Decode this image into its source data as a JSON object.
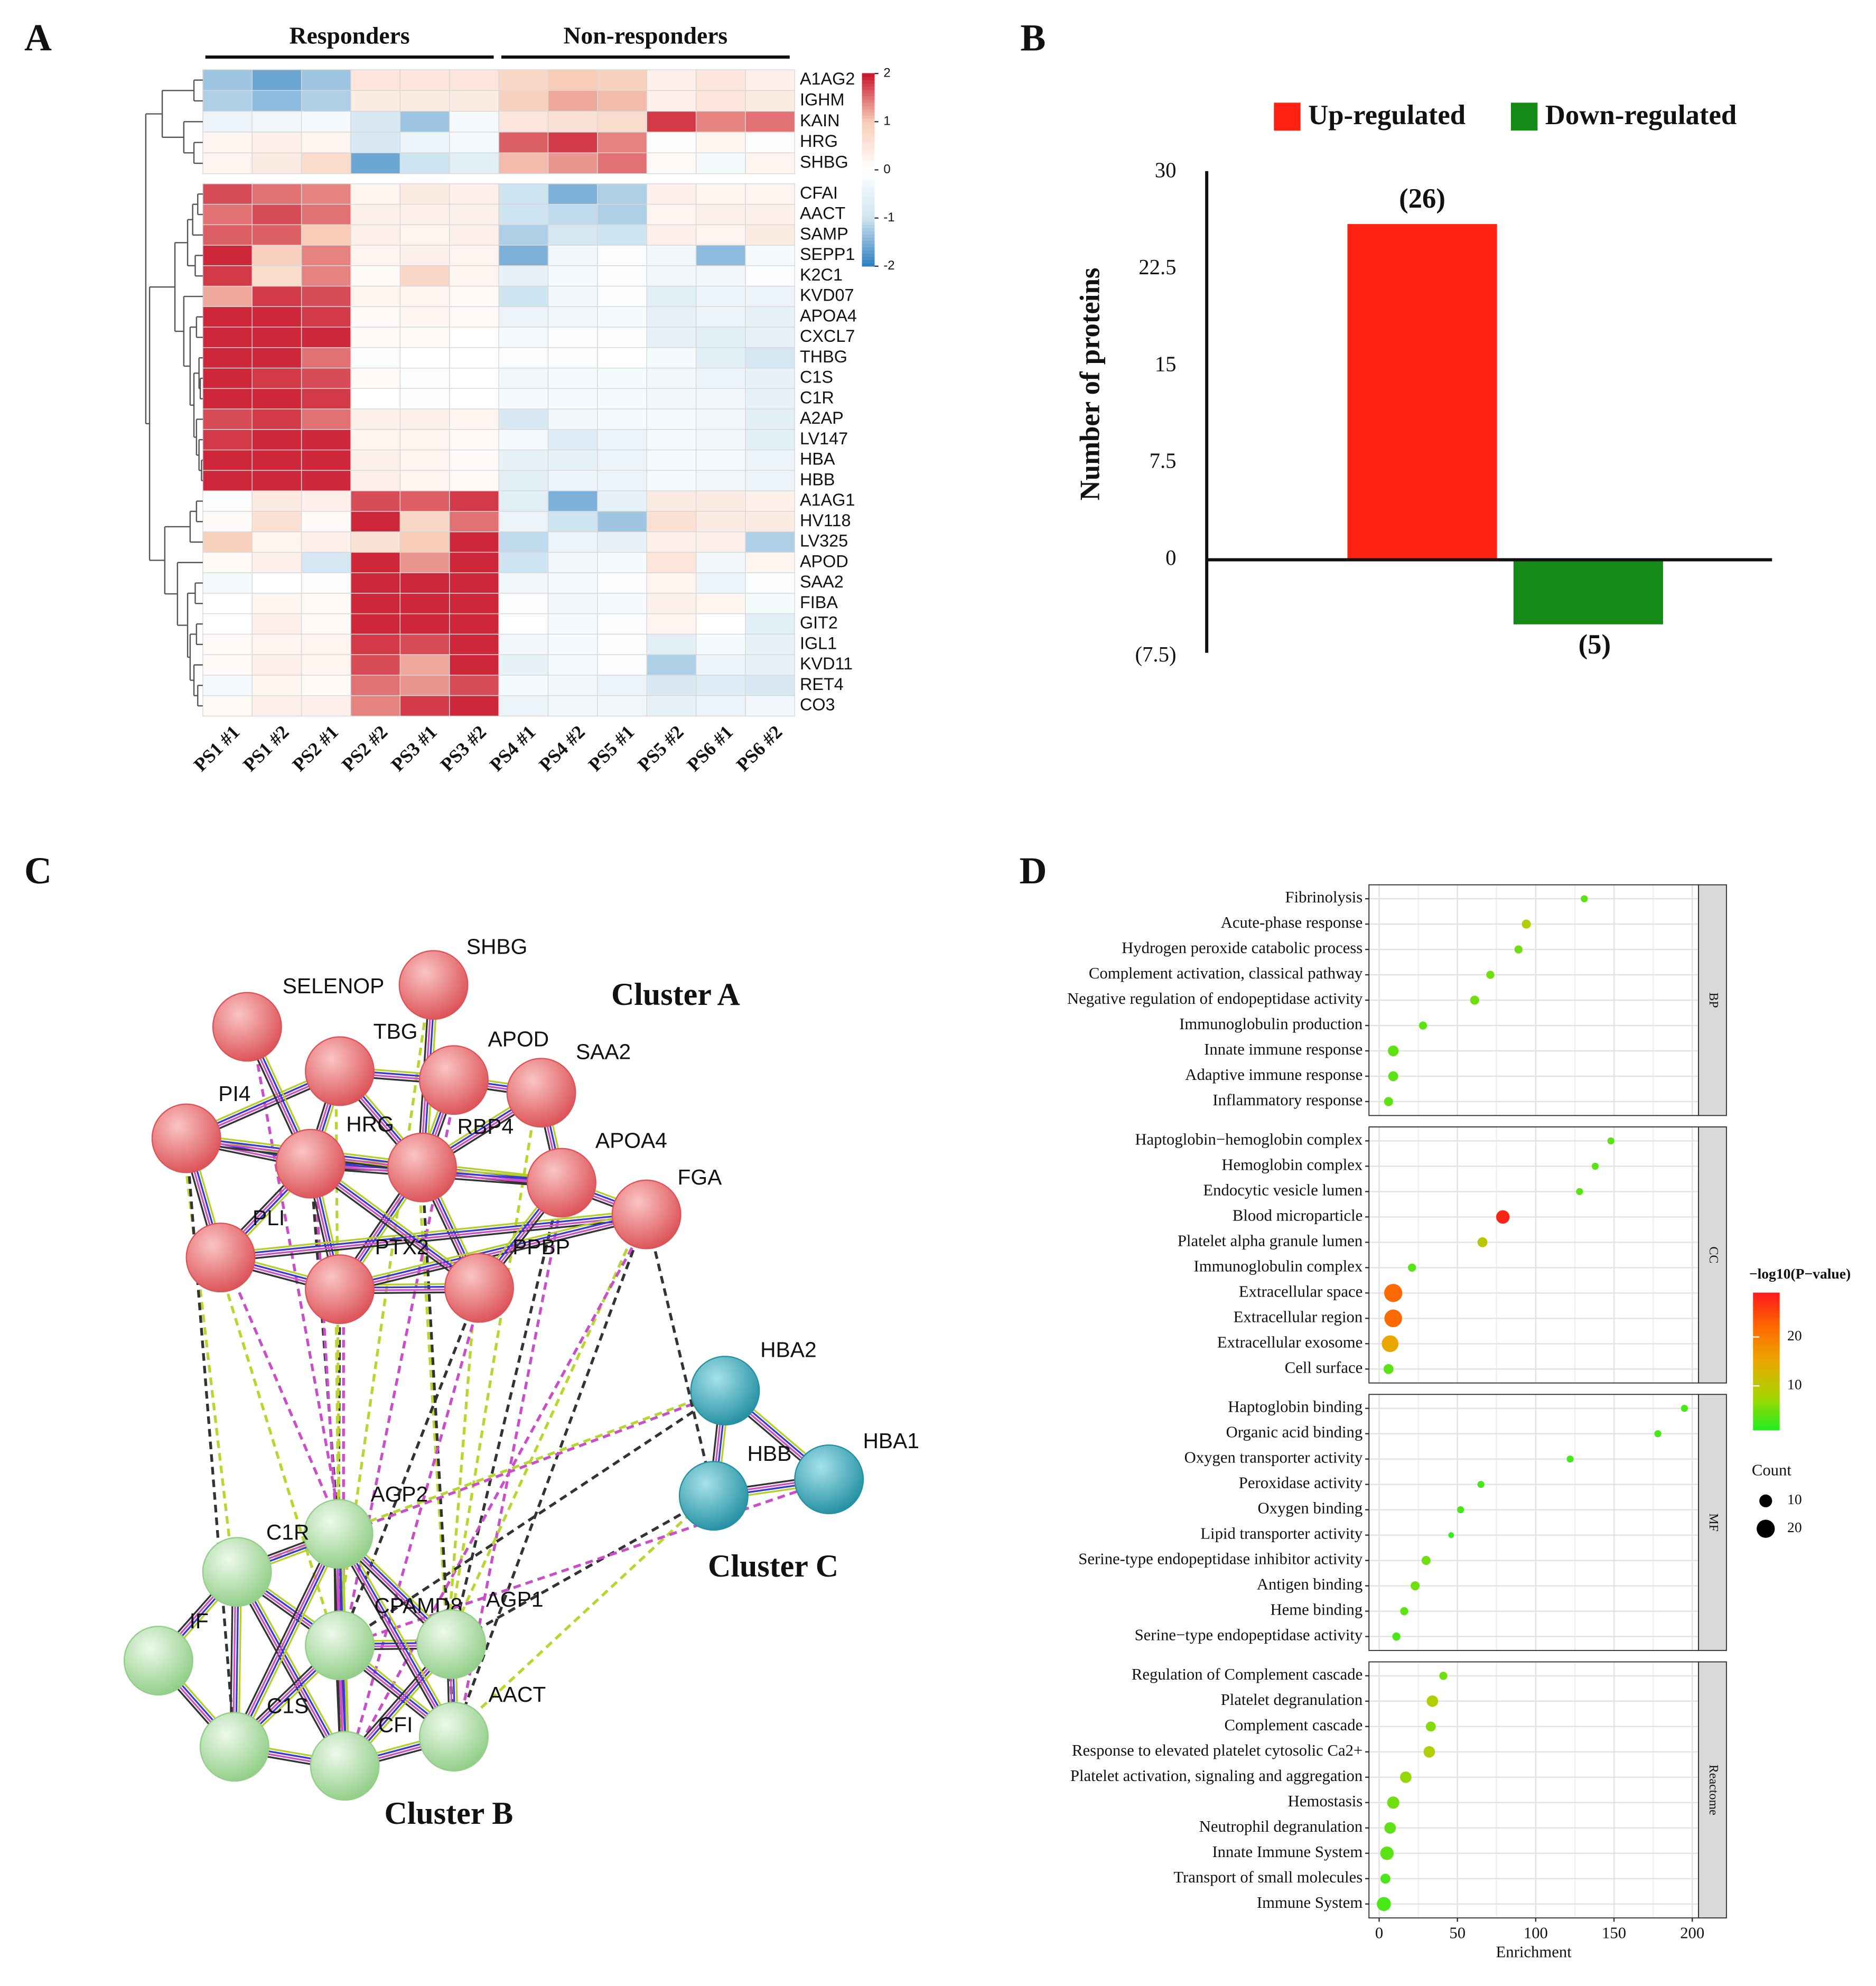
{
  "panel_labels": [
    "A",
    "B",
    "C",
    "D"
  ],
  "chart_data": [
    {
      "type": "heatmap",
      "group_labels": [
        "Responders",
        "Non-responders"
      ],
      "columns": [
        "PS1 #1",
        "PS1 #2",
        "PS2 #1",
        "PS2 #2",
        "PS3 #1",
        "PS3 #2",
        "PS4 #1",
        "PS4 #2",
        "PS5 #1",
        "PS5 #2",
        "PS6 #1",
        "PS6 #2"
      ],
      "rows": [
        "A1AG2",
        "IGHM",
        "KAIN",
        "HRG",
        "SHBG",
        "CFAI",
        "AACT",
        "SAMP",
        "SEPP1",
        "K2C1",
        "KVD07",
        "APOA4",
        "CXCL7",
        "THBG",
        "C1S",
        "C1R",
        "A2AP",
        "LV147",
        "HBA",
        "HBB",
        "A1AG1",
        "HV118",
        "LV325",
        "APOD",
        "SAA2",
        "FIBA",
        "GIT2",
        "IGL1",
        "KVD11",
        "RET4",
        "CO3"
      ],
      "values": [
        [
          -1.3,
          -1.6,
          -1.3,
          0.5,
          0.5,
          0.5,
          0.8,
          1.0,
          0.9,
          0.3,
          0.5,
          0.3
        ],
        [
          -1.2,
          -1.4,
          -1.2,
          0.4,
          0.4,
          0.4,
          0.9,
          1.2,
          1.1,
          0.3,
          0.5,
          0.4
        ],
        [
          -0.4,
          -0.3,
          -0.2,
          -0.8,
          -1.3,
          -0.2,
          0.5,
          0.6,
          0.7,
          1.8,
          1.4,
          1.5
        ],
        [
          0.2,
          0.3,
          0.2,
          -0.8,
          -0.4,
          -0.2,
          1.6,
          1.8,
          1.4,
          -0.1,
          0.2,
          -0.1
        ],
        [
          0.2,
          0.4,
          0.7,
          -1.6,
          -1.0,
          -0.6,
          1.1,
          1.3,
          1.5,
          0.1,
          -0.2,
          0.2
        ],
        [
          1.7,
          1.5,
          1.4,
          0.2,
          0.4,
          0.3,
          -1.0,
          -1.5,
          -1.2,
          0.3,
          0.2,
          0.2
        ],
        [
          1.5,
          1.7,
          1.5,
          0.3,
          0.3,
          0.3,
          -1.0,
          -1.1,
          -1.2,
          0.2,
          0.3,
          0.3
        ],
        [
          1.6,
          1.6,
          1.0,
          0.3,
          0.2,
          0.3,
          -1.2,
          -0.9,
          -1.0,
          0.3,
          0.2,
          0.4
        ],
        [
          1.9,
          0.9,
          1.4,
          0.2,
          0.3,
          0.2,
          -1.5,
          -0.3,
          -0.1,
          -0.3,
          -1.4,
          -0.2
        ],
        [
          1.8,
          0.7,
          1.4,
          0.1,
          0.8,
          0.2,
          -0.5,
          -0.2,
          -0.1,
          -0.3,
          -0.3,
          -0.1
        ],
        [
          1.2,
          1.8,
          1.7,
          0.2,
          0.2,
          0.1,
          -1.0,
          -0.3,
          -0.1,
          -0.6,
          -0.4,
          -0.4
        ],
        [
          1.9,
          1.9,
          1.8,
          0.1,
          0.2,
          0.1,
          -0.4,
          -0.3,
          -0.2,
          -0.5,
          -0.4,
          -0.5
        ],
        [
          1.9,
          1.9,
          1.9,
          0.1,
          0.1,
          0.0,
          -0.2,
          -0.1,
          -0.1,
          -0.5,
          -0.6,
          -0.5
        ],
        [
          1.9,
          1.9,
          1.5,
          -0.1,
          0.0,
          0.0,
          -0.1,
          -0.1,
          0.0,
          -0.2,
          -0.6,
          -0.9
        ],
        [
          1.9,
          1.8,
          1.7,
          0.1,
          -0.1,
          0.0,
          -0.3,
          -0.2,
          -0.2,
          -0.3,
          -0.4,
          -0.5
        ],
        [
          1.9,
          1.9,
          1.8,
          0.0,
          -0.1,
          0.0,
          -0.2,
          -0.2,
          -0.2,
          -0.3,
          -0.3,
          -0.5
        ],
        [
          1.7,
          1.8,
          1.5,
          0.3,
          0.3,
          0.2,
          -0.8,
          -0.3,
          -0.2,
          -0.2,
          -0.3,
          -0.6
        ],
        [
          1.8,
          1.9,
          1.9,
          0.2,
          0.2,
          0.1,
          -0.2,
          -0.7,
          -0.4,
          -0.2,
          -0.3,
          -0.6
        ],
        [
          1.9,
          1.9,
          1.9,
          0.3,
          0.2,
          0.1,
          -0.5,
          -0.5,
          -0.4,
          -0.2,
          -0.2,
          -0.4
        ],
        [
          1.9,
          1.9,
          1.9,
          0.3,
          0.2,
          0.1,
          -0.6,
          -0.4,
          -0.4,
          -0.2,
          -0.3,
          -0.4
        ],
        [
          -0.1,
          0.4,
          0.3,
          1.7,
          1.6,
          1.8,
          -0.6,
          -1.5,
          -0.5,
          0.4,
          0.4,
          0.3
        ],
        [
          0.1,
          0.6,
          0.1,
          1.9,
          0.8,
          1.5,
          -0.4,
          -1.0,
          -1.3,
          0.6,
          0.4,
          0.4
        ],
        [
          0.9,
          0.2,
          0.3,
          0.6,
          1.0,
          1.9,
          -1.1,
          -0.4,
          -0.5,
          0.3,
          0.3,
          -1.2
        ],
        [
          0.1,
          0.3,
          -0.9,
          1.9,
          1.3,
          1.9,
          -1.0,
          -0.3,
          -0.2,
          0.5,
          -0.3,
          0.2
        ],
        [
          -0.2,
          0.0,
          -0.1,
          1.9,
          1.9,
          1.9,
          -0.3,
          -0.2,
          -0.1,
          0.2,
          -0.4,
          -0.1
        ],
        [
          0.0,
          0.2,
          0.1,
          1.9,
          1.9,
          1.9,
          -0.1,
          -0.3,
          -0.2,
          0.3,
          0.2,
          -0.2
        ],
        [
          0.0,
          0.3,
          0.1,
          1.9,
          1.9,
          1.9,
          0.0,
          -0.2,
          -0.1,
          0.2,
          0.0,
          -0.6
        ],
        [
          0.1,
          0.2,
          0.2,
          1.8,
          1.7,
          1.9,
          -0.3,
          -0.2,
          -0.1,
          -0.6,
          -0.2,
          -0.5
        ],
        [
          0.1,
          0.3,
          0.2,
          1.7,
          1.2,
          1.9,
          -0.5,
          -0.2,
          -0.1,
          -1.2,
          -0.4,
          -0.5
        ],
        [
          -0.2,
          0.2,
          0.1,
          1.5,
          1.3,
          1.7,
          -0.2,
          -0.3,
          -0.4,
          -0.8,
          -0.7,
          -0.8
        ],
        [
          0.1,
          0.3,
          0.3,
          1.4,
          1.8,
          1.9,
          -0.4,
          -0.3,
          -0.3,
          -0.5,
          -0.4,
          -0.3
        ]
      ],
      "zlim": [
        -2,
        2
      ],
      "zticks": [
        -2,
        -1,
        0,
        1,
        2
      ],
      "colors": [
        "#2a7ec0",
        "#cfe4f1",
        "#ffffff",
        "#f8cdb8",
        "#c9152c"
      ]
    },
    {
      "type": "bar",
      "categories": [
        "Up-regulated",
        "Down-regulated"
      ],
      "values": [
        26,
        -5
      ],
      "value_labels": [
        "(26)",
        "(5)"
      ],
      "colors": [
        "#ff2212",
        "#168a16"
      ],
      "ylabel": "Number of proteins",
      "ylim": [
        -7.5,
        30
      ],
      "yticks": [
        30,
        22.5,
        15,
        7.5,
        0,
        {
          "value": -7.5,
          "label": "(7.5)"
        }
      ]
    },
    {
      "type": "dotplot",
      "xlabel": "Enrichment",
      "xlim": [
        -6.5,
        204
      ],
      "xticks": [
        0,
        50,
        100,
        150,
        200
      ],
      "color_title": "−log10(P−value)",
      "colorlim": [
        1,
        29
      ],
      "color_ticks": [
        10,
        20
      ],
      "colors": [
        "#22ee22",
        "#a8d400",
        "#e8a800",
        "#ff6a00",
        "#ff1a1a"
      ],
      "size_title": "Count",
      "size_ticks": [
        10,
        20
      ],
      "facets": [
        {
          "name": "BP",
          "terms": [
            "Fibrinolysis",
            "Acute-phase response",
            "Hydrogen peroxide catabolic process",
            "Complement activation, classical pathway",
            "Negative regulation of endopeptidase activity",
            "Immunoglobulin production",
            "Innate immune response",
            "Adaptive immune response",
            "Inflammatory response"
          ],
          "x": [
            131,
            94,
            89,
            71,
            61,
            28,
            9,
            9,
            6
          ],
          "count": [
            3,
            5,
            4,
            4,
            5,
            4,
            7,
            6,
            5
          ],
          "logp": [
            4,
            9,
            5,
            5,
            5,
            4,
            4,
            4,
            4
          ]
        },
        {
          "name": "CC",
          "terms": [
            "Haptoglobin−hemoglobin complex",
            "Hemoglobin complex",
            "Endocytic vesicle lumen",
            "Blood microparticle",
            "Platelet alpha granule lumen",
            "Immunoglobulin complex",
            "Extracellular space",
            "Extracellular region",
            "Extracellular exosome",
            "Cell surface"
          ],
          "x": [
            148,
            138,
            128,
            79,
            66,
            21,
            9,
            9,
            7,
            6
          ],
          "count": [
            3,
            3,
            3,
            11,
            6,
            4,
            20,
            19,
            17,
            6
          ],
          "logp": [
            4,
            4,
            4,
            28,
            10,
            4,
            22,
            22,
            15,
            4
          ]
        },
        {
          "name": "MF",
          "terms": [
            "Haptoglobin binding",
            "Organic acid binding",
            "Oxygen transporter activity",
            "Peroxidase activity",
            "Oxygen binding",
            "Lipid transporter activity",
            "Serine-type endopeptidase inhibitor activity",
            "Antigen binding",
            "Heme binding",
            "Serine−type endopeptidase activity"
          ],
          "x": [
            195,
            178,
            122,
            65,
            52,
            46,
            30,
            23,
            16,
            11
          ],
          "count": [
            3,
            3,
            3,
            3,
            3,
            2,
            5,
            5,
            4,
            4
          ],
          "logp": [
            3,
            3,
            3,
            3,
            3,
            2,
            5,
            5,
            4,
            3
          ]
        },
        {
          "name": "Reactome",
          "terms": [
            "Regulation of Complement cascade",
            "Platelet degranulation",
            "Complement cascade",
            "Response to elevated platelet cytosolic Ca2+",
            "Platelet activation, signaling and aggregation",
            "Hemostasis",
            "Neutrophil degranulation",
            "Innate Immune System",
            "Transport of small molecules",
            "Immune System"
          ],
          "x": [
            41,
            34,
            33,
            32,
            17,
            9,
            7,
            5,
            4,
            3
          ],
          "count": [
            4,
            8,
            6,
            8,
            8,
            9,
            8,
            11,
            6,
            12
          ],
          "logp": [
            5,
            9,
            6,
            9,
            7,
            5,
            4,
            4,
            3,
            3
          ]
        }
      ]
    }
  ],
  "network": {
    "clusters": [
      {
        "name": "Cluster A",
        "color": "#dc5458"
      },
      {
        "name": "Cluster B",
        "color": "#92cf88"
      },
      {
        "name": "Cluster C",
        "color": "#2591a4"
      }
    ],
    "nodes": [
      {
        "label": "SHBG",
        "cluster": 0
      },
      {
        "label": "SELENOP",
        "cluster": 0
      },
      {
        "label": "TBG",
        "cluster": 0
      },
      {
        "label": "APOD",
        "cluster": 0
      },
      {
        "label": "SAA2",
        "cluster": 0
      },
      {
        "label": "PI4",
        "cluster": 0
      },
      {
        "label": "HRG",
        "cluster": 0
      },
      {
        "label": "RBP4",
        "cluster": 0
      },
      {
        "label": "APOA4",
        "cluster": 0
      },
      {
        "label": "FGA",
        "cluster": 0
      },
      {
        "label": "PLI",
        "cluster": 0
      },
      {
        "label": "PTX2",
        "cluster": 0
      },
      {
        "label": "PPBP",
        "cluster": 0
      },
      {
        "label": "AGP2",
        "cluster": 1
      },
      {
        "label": "C1R",
        "cluster": 1
      },
      {
        "label": "IF",
        "cluster": 1
      },
      {
        "label": "CPAMD8",
        "cluster": 1
      },
      {
        "label": "AGP1",
        "cluster": 1
      },
      {
        "label": "C1S",
        "cluster": 1
      },
      {
        "label": "CFI",
        "cluster": 1
      },
      {
        "label": "AACT",
        "cluster": 1
      },
      {
        "label": "HBA2",
        "cluster": 2
      },
      {
        "label": "HBA1",
        "cluster": 2
      },
      {
        "label": "HBB",
        "cluster": 2
      }
    ]
  }
}
